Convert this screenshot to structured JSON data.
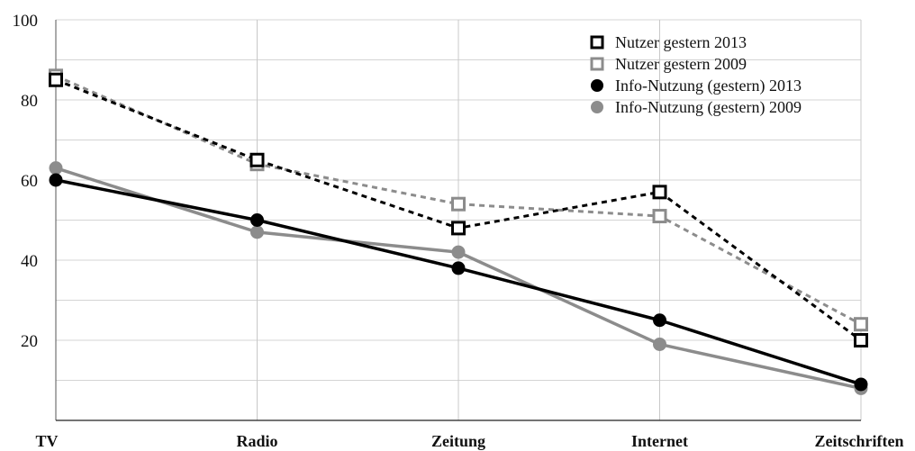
{
  "chart_data": {
    "type": "line",
    "categories": [
      "TV",
      "Radio",
      "Zeitung",
      "Internet",
      "Zeitschriften"
    ],
    "ylim": [
      0,
      100
    ],
    "yticks": [
      20,
      40,
      60,
      80,
      100
    ],
    "grid": true,
    "legend_position": "top-right",
    "series": [
      {
        "name": "Nutzer gestern 2013",
        "values": [
          85,
          65,
          48,
          57,
          20
        ],
        "color": "#000000",
        "dashed": true,
        "marker": "square"
      },
      {
        "name": "Nutzer gestern 2009",
        "values": [
          86,
          64,
          54,
          51,
          24
        ],
        "color": "#8c8c8c",
        "dashed": true,
        "marker": "square"
      },
      {
        "name": "Info-Nutzung (gestern) 2013",
        "values": [
          60,
          50,
          38,
          25,
          9
        ],
        "color": "#000000",
        "dashed": false,
        "marker": "circle"
      },
      {
        "name": "Info-Nutzung (gestern) 2009",
        "values": [
          63,
          47,
          42,
          19,
          8
        ],
        "color": "#8c8c8c",
        "dashed": false,
        "marker": "circle"
      }
    ]
  }
}
